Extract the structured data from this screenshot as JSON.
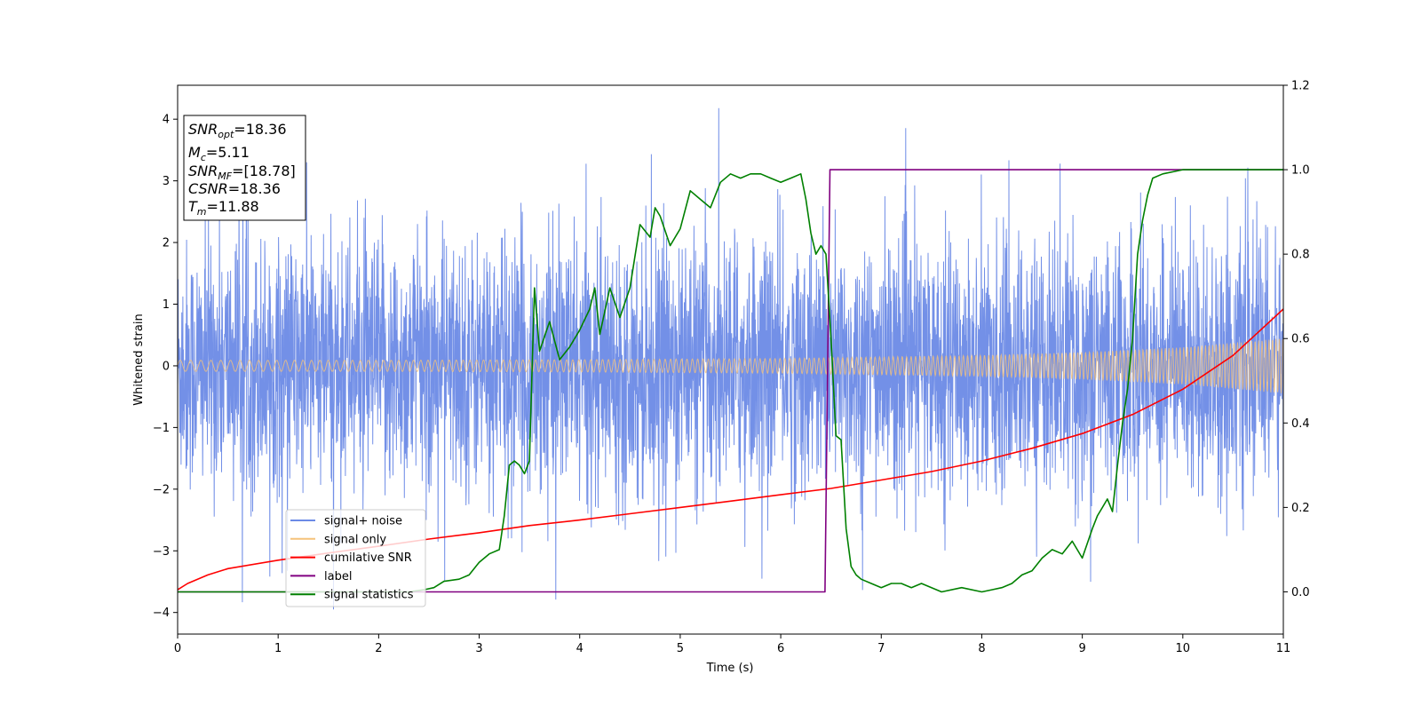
{
  "chart_data": {
    "type": "line",
    "xlabel": "Time (s)",
    "ylabel": "Whitened strain",
    "xlim": [
      0,
      11
    ],
    "ylim": [
      -4.35,
      4.55
    ],
    "y2lim": [
      -0.1,
      1.2
    ],
    "x_ticks": [
      0,
      1,
      2,
      3,
      4,
      5,
      6,
      7,
      8,
      9,
      10,
      11
    ],
    "y_ticks": [
      -4,
      -3,
      -2,
      -1,
      0,
      1,
      2,
      3,
      4
    ],
    "y2_ticks": [
      0.0,
      0.2,
      0.4,
      0.6,
      0.8,
      1.0,
      1.2
    ],
    "x_tick_labels": [
      "0",
      "1",
      "2",
      "3",
      "4",
      "5",
      "6",
      "7",
      "8",
      "9",
      "10",
      "11"
    ],
    "y_tick_labels": [
      "−4",
      "−3",
      "−2",
      "−1",
      "0",
      "1",
      "2",
      "3",
      "4"
    ],
    "y2_tick_labels": [
      "0.0",
      "0.2",
      "0.4",
      "0.6",
      "0.8",
      "1.0",
      "1.2"
    ],
    "grid": false,
    "legend": {
      "placement": "lower-left",
      "entries": [
        {
          "label": "signal+ noise",
          "color": "#6b8ae6"
        },
        {
          "label": "signal only",
          "color": "#f5c27a"
        },
        {
          "label": "cumilative SNR",
          "color": "#ff0000"
        },
        {
          "label": "label",
          "color": "#800080"
        },
        {
          "label": "signal statistics",
          "color": "#008000"
        }
      ]
    },
    "annotation": {
      "placement": "top-left",
      "lines": [
        {
          "base": "SNR",
          "sub": "opt",
          "value": "=18.36"
        },
        {
          "base": "M",
          "sub": "c",
          "value": "=5.11"
        },
        {
          "base": "SNR",
          "sub": "MF",
          "value": "=[18.78]"
        },
        {
          "base": "CSNR",
          "sub": "",
          "value": "=18.36"
        },
        {
          "base": "T",
          "sub": "m",
          "value": "=11.88"
        }
      ]
    },
    "series": [
      {
        "name": "signal+ noise",
        "axis": "left",
        "color": "#6b8ae6",
        "kind": "noise-band",
        "x_range": [
          0,
          11
        ],
        "typical_amplitude": 1.4,
        "peak_max": 4.18,
        "peak_min": -3.95
      },
      {
        "name": "signal only",
        "axis": "left",
        "color": "#f5c27a",
        "kind": "chirp-envelope",
        "x": [
          0,
          2,
          4,
          6,
          8,
          9,
          10,
          11
        ],
        "envelope": [
          0.09,
          0.09,
          0.1,
          0.12,
          0.17,
          0.22,
          0.3,
          0.45
        ]
      },
      {
        "name": "cumilative SNR",
        "axis": "right",
        "color": "#ff0000",
        "x": [
          0,
          0.1,
          0.3,
          0.5,
          1,
          1.5,
          2,
          2.5,
          3,
          3.5,
          4,
          4.5,
          5,
          5.5,
          6,
          6.5,
          7,
          7.5,
          8,
          8.5,
          9,
          9.5,
          10,
          10.5,
          11
        ],
        "y": [
          0.005,
          0.02,
          0.04,
          0.055,
          0.075,
          0.092,
          0.108,
          0.125,
          0.14,
          0.157,
          0.17,
          0.185,
          0.2,
          0.215,
          0.23,
          0.245,
          0.265,
          0.285,
          0.31,
          0.34,
          0.375,
          0.42,
          0.48,
          0.56,
          0.67
        ]
      },
      {
        "name": "label",
        "axis": "right",
        "color": "#800080",
        "x": [
          0,
          6.44,
          6.49,
          11
        ],
        "y": [
          0.0,
          0.0,
          1.0,
          1.0
        ]
      },
      {
        "name": "signal statistics",
        "axis": "right",
        "color": "#008000",
        "x": [
          0,
          0.5,
          1,
          1.5,
          2,
          2.3,
          2.45,
          2.55,
          2.65,
          2.8,
          2.9,
          3.0,
          3.1,
          3.2,
          3.25,
          3.3,
          3.35,
          3.4,
          3.45,
          3.5,
          3.55,
          3.6,
          3.7,
          3.8,
          3.9,
          4.0,
          4.1,
          4.15,
          4.2,
          4.3,
          4.4,
          4.5,
          4.6,
          4.7,
          4.75,
          4.8,
          4.9,
          5.0,
          5.1,
          5.2,
          5.3,
          5.4,
          5.5,
          5.6,
          5.7,
          5.8,
          5.9,
          6.0,
          6.1,
          6.2,
          6.25,
          6.3,
          6.35,
          6.4,
          6.45,
          6.5,
          6.55,
          6.6,
          6.65,
          6.7,
          6.75,
          6.8,
          6.9,
          7.0,
          7.1,
          7.2,
          7.3,
          7.4,
          7.6,
          7.8,
          8.0,
          8.1,
          8.2,
          8.3,
          8.4,
          8.5,
          8.6,
          8.7,
          8.8,
          8.9,
          9.0,
          9.1,
          9.15,
          9.2,
          9.25,
          9.3,
          9.35,
          9.4,
          9.45,
          9.5,
          9.55,
          9.6,
          9.65,
          9.7,
          9.8,
          10.0,
          10.5,
          11
        ],
        "y": [
          0.0,
          0.0,
          0.0,
          0.0,
          0.0,
          0.0,
          0.005,
          0.01,
          0.025,
          0.03,
          0.04,
          0.07,
          0.09,
          0.1,
          0.18,
          0.3,
          0.31,
          0.3,
          0.28,
          0.31,
          0.72,
          0.57,
          0.64,
          0.55,
          0.58,
          0.62,
          0.67,
          0.72,
          0.61,
          0.72,
          0.65,
          0.72,
          0.87,
          0.84,
          0.91,
          0.89,
          0.82,
          0.86,
          0.95,
          0.93,
          0.91,
          0.97,
          0.99,
          0.98,
          0.99,
          0.99,
          0.98,
          0.97,
          0.98,
          0.99,
          0.93,
          0.85,
          0.8,
          0.82,
          0.8,
          0.6,
          0.37,
          0.36,
          0.15,
          0.06,
          0.04,
          0.03,
          0.02,
          0.01,
          0.02,
          0.02,
          0.01,
          0.02,
          0.0,
          0.01,
          0.0,
          0.005,
          0.01,
          0.02,
          0.04,
          0.05,
          0.08,
          0.1,
          0.09,
          0.12,
          0.08,
          0.15,
          0.18,
          0.2,
          0.22,
          0.19,
          0.3,
          0.4,
          0.48,
          0.6,
          0.8,
          0.88,
          0.94,
          0.98,
          0.99,
          1.0,
          1.0,
          1.0
        ]
      }
    ]
  }
}
